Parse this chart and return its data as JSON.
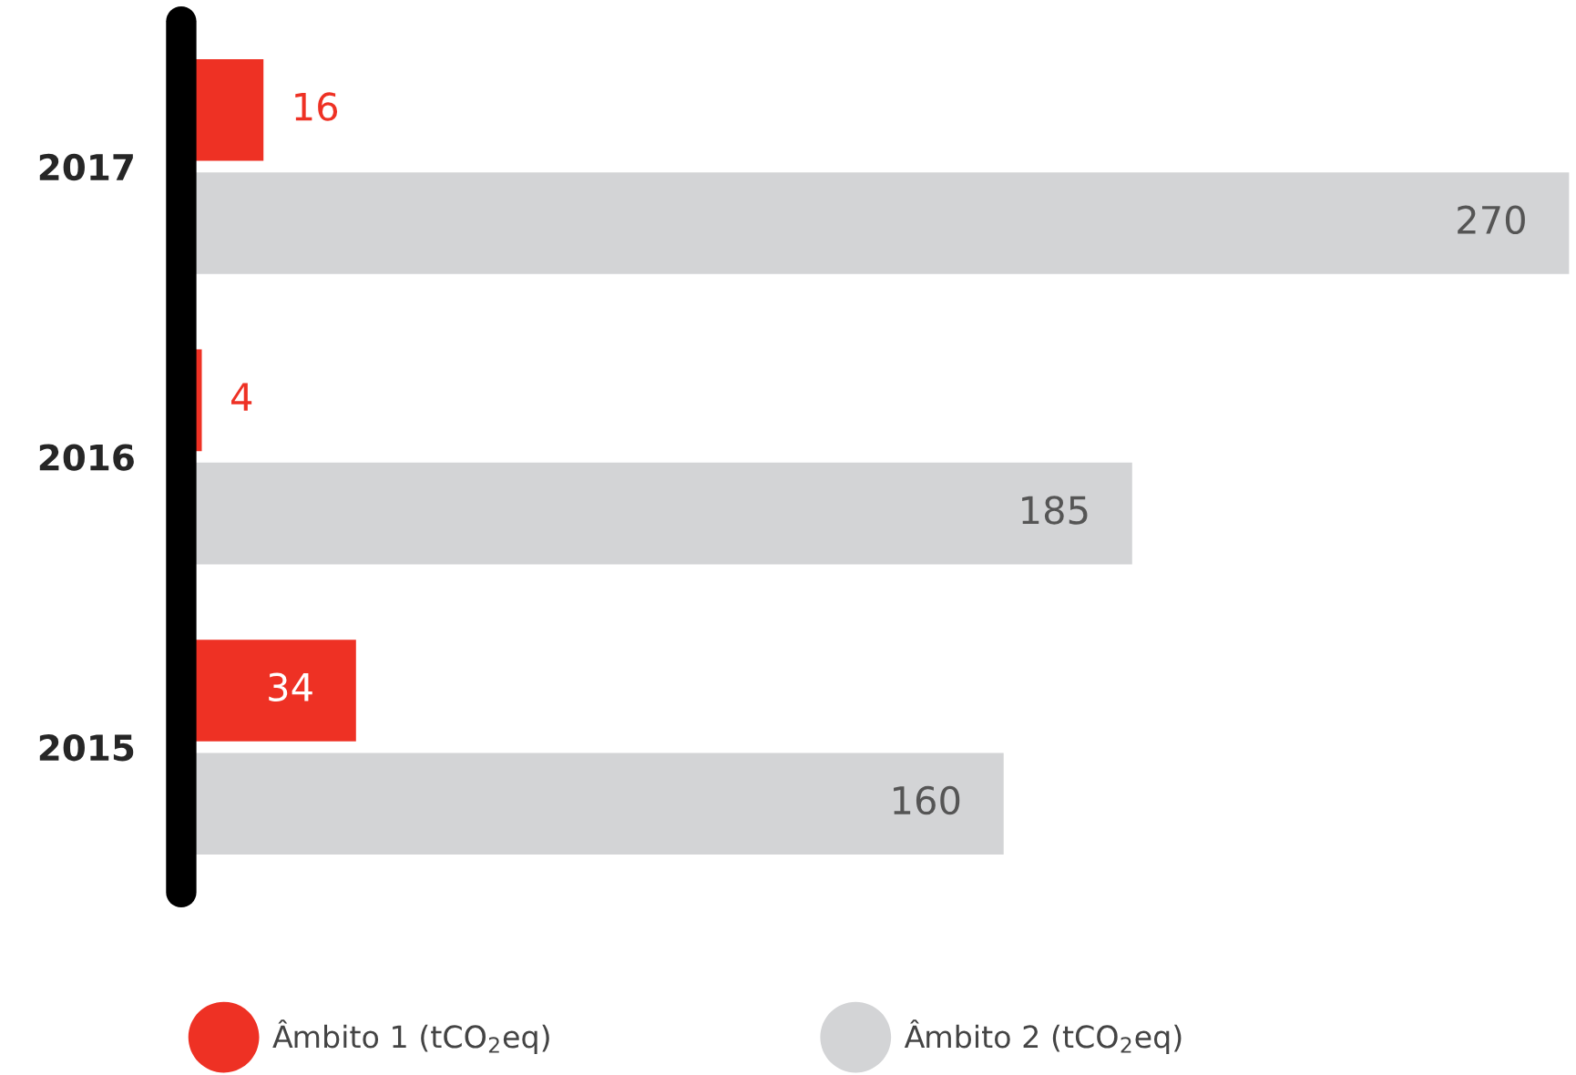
{
  "chart_data": {
    "type": "bar",
    "orientation": "horizontal",
    "categories": [
      "2017",
      "2016",
      "2015"
    ],
    "series": [
      {
        "name": "Âmbito 1 (tCO$_{2}$eq)",
        "color": "#ee3124",
        "values": [
          16,
          4,
          34
        ]
      },
      {
        "name": "Âmbito 2 (tCO$_{2}$eq)",
        "color": "#d3d4d6",
        "values": [
          270,
          185,
          160
        ]
      }
    ],
    "data_labels": true,
    "legend": "bottom",
    "grid": false,
    "tick_labels": "y"
  }
}
